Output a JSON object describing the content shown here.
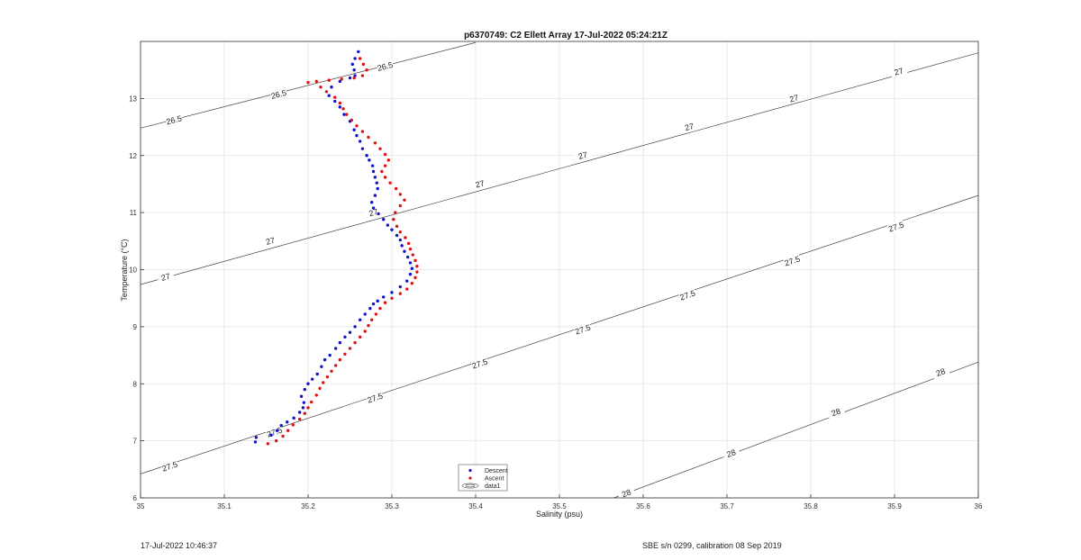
{
  "chart_data": {
    "type": "scatter",
    "title": "p6370749: C2 Ellett Array 17-Jul-2022 05:24:21Z",
    "xlabel": "Salinity (psu)",
    "ylabel": "Temperature (°C)",
    "xlim": [
      35,
      36
    ],
    "ylim": [
      6,
      14
    ],
    "grid": true,
    "legend_position": "bottom-center",
    "x_ticks": [
      "35",
      "35.1",
      "35.2",
      "35.3",
      "35.4",
      "35.5",
      "35.6",
      "35.7",
      "35.8",
      "35.9",
      "36"
    ],
    "y_ticks": [
      "6",
      "7",
      "8",
      "9",
      "10",
      "11",
      "12",
      "13"
    ],
    "legend": [
      "Descent",
      "Ascent",
      "data1"
    ],
    "series": [
      {
        "name": "Descent",
        "color": "#1010d0",
        "points": [
          [
            35.137,
            6.98
          ],
          [
            35.138,
            7.06
          ],
          [
            35.156,
            7.1
          ],
          [
            35.163,
            7.18
          ],
          [
            35.168,
            7.27
          ],
          [
            35.175,
            7.33
          ],
          [
            35.183,
            7.4
          ],
          [
            35.19,
            7.5
          ],
          [
            35.194,
            7.58
          ],
          [
            35.195,
            7.67
          ],
          [
            35.192,
            7.78
          ],
          [
            35.196,
            7.9
          ],
          [
            35.2,
            8.0
          ],
          [
            35.205,
            8.08
          ],
          [
            35.211,
            8.17
          ],
          [
            35.216,
            8.3
          ],
          [
            35.22,
            8.42
          ],
          [
            35.226,
            8.5
          ],
          [
            35.233,
            8.62
          ],
          [
            35.238,
            8.72
          ],
          [
            35.244,
            8.82
          ],
          [
            35.25,
            8.9
          ],
          [
            35.256,
            9.0
          ],
          [
            35.262,
            9.12
          ],
          [
            35.268,
            9.22
          ],
          [
            35.274,
            9.32
          ],
          [
            35.278,
            9.4
          ],
          [
            35.283,
            9.45
          ],
          [
            35.29,
            9.52
          ],
          [
            35.3,
            9.6
          ],
          [
            35.31,
            9.7
          ],
          [
            35.318,
            9.8
          ],
          [
            35.322,
            9.92
          ],
          [
            35.324,
            10.02
          ],
          [
            35.322,
            10.12
          ],
          [
            35.319,
            10.22
          ],
          [
            35.315,
            10.32
          ],
          [
            35.312,
            10.42
          ],
          [
            35.31,
            10.52
          ],
          [
            35.306,
            10.6
          ],
          [
            35.3,
            10.7
          ],
          [
            35.295,
            10.78
          ],
          [
            35.29,
            10.88
          ],
          [
            35.284,
            10.98
          ],
          [
            35.278,
            11.08
          ],
          [
            35.276,
            11.18
          ],
          [
            35.28,
            11.3
          ],
          [
            35.283,
            11.42
          ],
          [
            35.282,
            11.52
          ],
          [
            35.28,
            11.62
          ],
          [
            35.278,
            11.72
          ],
          [
            35.277,
            11.82
          ],
          [
            35.273,
            11.92
          ],
          [
            35.27,
            12.0
          ],
          [
            35.265,
            12.12
          ],
          [
            35.262,
            12.25
          ],
          [
            35.258,
            12.35
          ],
          [
            35.255,
            12.45
          ],
          [
            35.25,
            12.6
          ],
          [
            35.243,
            12.72
          ],
          [
            35.238,
            12.85
          ],
          [
            35.232,
            12.95
          ],
          [
            35.225,
            13.05
          ],
          [
            35.228,
            13.2
          ],
          [
            35.238,
            13.3
          ],
          [
            35.25,
            13.36
          ],
          [
            35.256,
            13.4
          ],
          [
            35.255,
            13.5
          ],
          [
            35.253,
            13.6
          ],
          [
            35.256,
            13.7
          ],
          [
            35.26,
            13.82
          ]
        ]
      },
      {
        "name": "Ascent",
        "color": "#e01010",
        "points": [
          [
            35.152,
            6.95
          ],
          [
            35.162,
            7.0
          ],
          [
            35.17,
            7.08
          ],
          [
            35.176,
            7.18
          ],
          [
            35.182,
            7.28
          ],
          [
            35.19,
            7.38
          ],
          [
            35.196,
            7.48
          ],
          [
            35.2,
            7.58
          ],
          [
            35.204,
            7.68
          ],
          [
            35.21,
            7.8
          ],
          [
            35.214,
            7.92
          ],
          [
            35.218,
            8.02
          ],
          [
            35.223,
            8.12
          ],
          [
            35.228,
            8.22
          ],
          [
            35.233,
            8.32
          ],
          [
            35.238,
            8.42
          ],
          [
            35.244,
            8.52
          ],
          [
            35.25,
            8.62
          ],
          [
            35.256,
            8.72
          ],
          [
            35.262,
            8.82
          ],
          [
            35.268,
            8.92
          ],
          [
            35.272,
            9.02
          ],
          [
            35.276,
            9.12
          ],
          [
            35.281,
            9.22
          ],
          [
            35.286,
            9.32
          ],
          [
            35.292,
            9.42
          ],
          [
            35.3,
            9.5
          ],
          [
            35.31,
            9.58
          ],
          [
            35.318,
            9.66
          ],
          [
            35.324,
            9.76
          ],
          [
            35.328,
            9.86
          ],
          [
            35.33,
            9.96
          ],
          [
            35.33,
            10.06
          ],
          [
            35.328,
            10.16
          ],
          [
            35.325,
            10.26
          ],
          [
            35.322,
            10.36
          ],
          [
            35.32,
            10.46
          ],
          [
            35.316,
            10.56
          ],
          [
            35.31,
            10.66
          ],
          [
            35.306,
            10.76
          ],
          [
            35.302,
            10.88
          ],
          [
            35.304,
            11.0
          ],
          [
            35.31,
            11.12
          ],
          [
            35.315,
            11.22
          ],
          [
            35.31,
            11.32
          ],
          [
            35.305,
            11.42
          ],
          [
            35.298,
            11.52
          ],
          [
            35.292,
            11.62
          ],
          [
            35.288,
            11.72
          ],
          [
            35.292,
            11.82
          ],
          [
            35.296,
            11.92
          ],
          [
            35.292,
            12.02
          ],
          [
            35.286,
            12.12
          ],
          [
            35.28,
            12.22
          ],
          [
            35.272,
            12.32
          ],
          [
            35.265,
            12.42
          ],
          [
            35.258,
            12.52
          ],
          [
            35.252,
            12.62
          ],
          [
            35.246,
            12.72
          ],
          [
            35.242,
            12.82
          ],
          [
            35.238,
            12.92
          ],
          [
            35.232,
            13.02
          ],
          [
            35.222,
            13.12
          ],
          [
            35.215,
            13.2
          ],
          [
            35.2,
            13.28
          ],
          [
            35.21,
            13.3
          ],
          [
            35.225,
            13.32
          ],
          [
            35.24,
            13.34
          ],
          [
            35.255,
            13.36
          ],
          [
            35.265,
            13.4
          ],
          [
            35.27,
            13.5
          ],
          [
            35.266,
            13.6
          ],
          [
            35.262,
            13.7
          ]
        ]
      }
    ],
    "contours": [
      {
        "label": "26.5",
        "line": [
          [
            35,
            12.48
          ],
          [
            35.4,
            13.98
          ]
        ],
        "label_positions": [
          [
            35.04,
            12.62
          ],
          [
            35.165,
            13.07
          ],
          [
            35.292,
            13.56
          ]
        ]
      },
      {
        "label": "27",
        "line": [
          [
            35,
            9.74
          ],
          [
            36,
            13.8
          ]
        ],
        "label_positions": [
          [
            35.03,
            9.87
          ],
          [
            35.155,
            10.5
          ],
          [
            35.278,
            11.0
          ],
          [
            35.405,
            11.5
          ],
          [
            35.528,
            12.0
          ],
          [
            35.655,
            12.5
          ],
          [
            35.78,
            13.0
          ],
          [
            35.905,
            13.47
          ]
        ]
      },
      {
        "label": "27.5",
        "line": [
          [
            35,
            6.42
          ],
          [
            36,
            11.3
          ]
        ],
        "label_positions": [
          [
            35.035,
            6.55
          ],
          [
            35.16,
            7.15
          ],
          [
            35.28,
            7.75
          ],
          [
            35.405,
            8.35
          ],
          [
            35.528,
            8.95
          ],
          [
            35.653,
            9.55
          ],
          [
            35.778,
            10.15
          ],
          [
            35.902,
            10.75
          ]
        ]
      },
      {
        "label": "28",
        "line": [
          [
            35.565,
            6.0
          ],
          [
            36,
            8.38
          ]
        ],
        "label_positions": [
          [
            35.58,
            6.08
          ],
          [
            35.705,
            6.78
          ],
          [
            35.83,
            7.5
          ],
          [
            35.955,
            8.2
          ]
        ]
      }
    ]
  },
  "footer": {
    "left": "17-Jul-2022 10:46:37",
    "right": "SBE s/n 0299, calibration 08 Sep 2019"
  }
}
